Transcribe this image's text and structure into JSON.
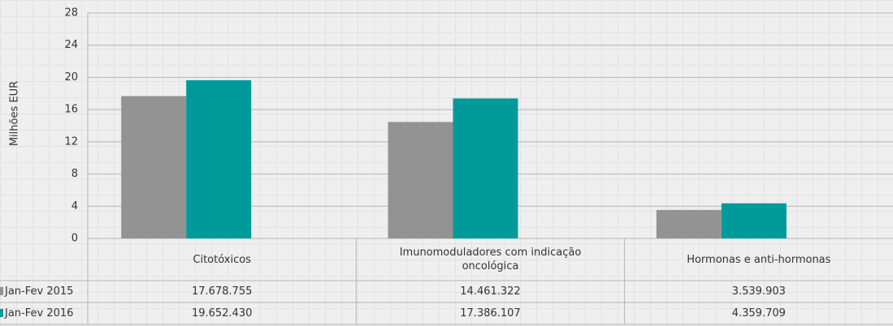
{
  "chart_data": {
    "type": "bar",
    "y_label": "Milhões EUR",
    "categories": [
      "Citotóxicos",
      "Imunomoduladores com indicação oncológica",
      "Hormonas e anti-hormonas"
    ],
    "series": [
      {
        "name": "Jan-Fev 2015",
        "color": "#939393",
        "values": [
          17.678755,
          14.461322,
          3.539903
        ],
        "value_labels": [
          "17.678.755",
          "14.461.322",
          "3.539.903"
        ]
      },
      {
        "name": "Jan-Fev 2016",
        "color": "#009a9a",
        "values": [
          19.65243,
          17.386107,
          4.359709
        ],
        "value_labels": [
          "19.652.430",
          "17.386.107",
          "4.359.709"
        ]
      }
    ],
    "ylim": [
      0,
      28
    ],
    "yticks": [
      0,
      4,
      8,
      12,
      16,
      20,
      24,
      28
    ],
    "grid": true
  }
}
